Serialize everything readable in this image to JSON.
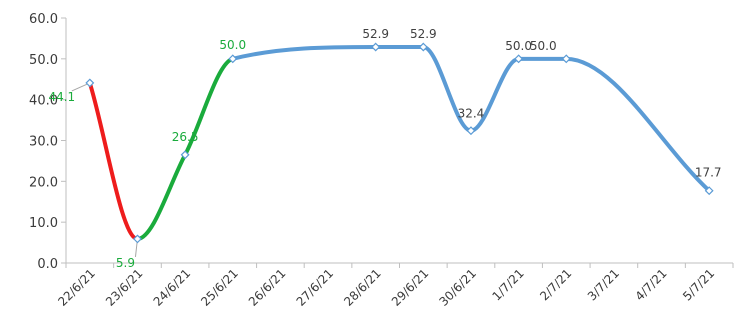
{
  "chart_data": {
    "type": "line",
    "title": "",
    "xlabel": "",
    "ylabel": "",
    "ylim": [
      0,
      60
    ],
    "yticks": [
      "0.0",
      "10.0",
      "20.0",
      "30.0",
      "40.0",
      "50.0",
      "60.0"
    ],
    "categories": [
      "22/6/21",
      "23/6/21",
      "24/6/21",
      "25/6/21",
      "26/6/21",
      "27/6/21",
      "28/6/21",
      "29/6/21",
      "30/6/21",
      "1/7/21",
      "2/7/21",
      "3/7/21",
      "4/7/21",
      "5/7/21"
    ],
    "points": [
      {
        "category": "22/6/21",
        "value": 44.1,
        "label": "44.1"
      },
      {
        "category": "23/6/21",
        "value": 5.9,
        "label": "5.9"
      },
      {
        "category": "24/6/21",
        "value": 26.5,
        "label": "26.5"
      },
      {
        "category": "25/6/21",
        "value": 50.0,
        "label": "50.0"
      },
      {
        "category": "28/6/21",
        "value": 52.9,
        "label": "52.9"
      },
      {
        "category": "29/6/21",
        "value": 52.9,
        "label": "52.9"
      },
      {
        "category": "30/6/21",
        "value": 32.4,
        "label": "32.4"
      },
      {
        "category": "1/7/21",
        "value": 50.0,
        "label": "50.0"
      },
      {
        "category": "2/7/21",
        "value": 50.0,
        "label": "50.0"
      },
      {
        "category": "5/7/21",
        "value": 17.7,
        "label": "17.7"
      }
    ],
    "segment_colors": {
      "falling": "#ee1c1c",
      "rising": "#1aab3c",
      "default": "#5b9bd5"
    },
    "label_colors": {
      "highlight": "#1aab3c",
      "default": "#404040"
    },
    "grid": false,
    "legend": "none"
  }
}
